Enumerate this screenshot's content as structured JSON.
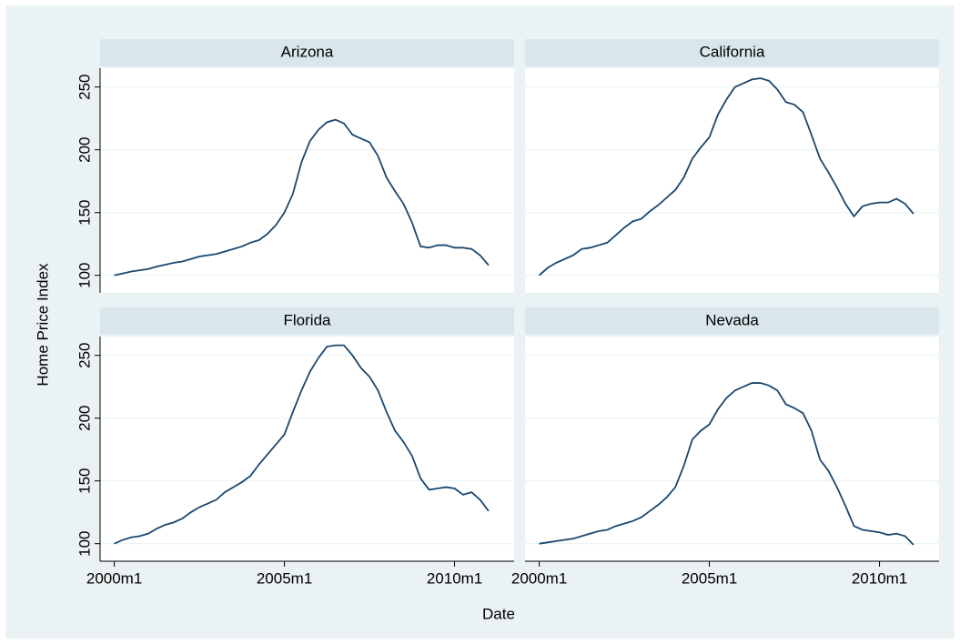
{
  "chart_data": {
    "type": "line",
    "xlabel": "Date",
    "ylabel": "Home Price Index",
    "x": [
      480,
      483,
      486,
      489,
      492,
      495,
      498,
      501,
      504,
      507,
      510,
      513,
      516,
      519,
      522,
      525,
      528,
      531,
      534,
      537,
      540,
      543,
      546,
      549,
      552,
      555,
      558,
      561,
      564,
      567,
      570,
      573,
      576,
      579,
      582,
      585,
      588,
      591,
      594,
      597,
      600,
      603,
      606,
      609,
      612
    ],
    "series": [
      {
        "name": "Arizona",
        "color": "#1a476f",
        "values": [
          100,
          101.5,
          103,
          104,
          105,
          107,
          108.5,
          110,
          111,
          113,
          115,
          116,
          117,
          119,
          121,
          123,
          126,
          128,
          133,
          140,
          150,
          165,
          190,
          207,
          216,
          222,
          224,
          221,
          212,
          209,
          206,
          195,
          178,
          167,
          157,
          142,
          123,
          122,
          124,
          124,
          122,
          122,
          121,
          116,
          108
        ]
      },
      {
        "name": "California",
        "color": "#1a476f",
        "values": [
          100,
          106,
          110,
          113,
          116,
          121,
          122,
          124,
          126,
          132,
          138,
          143,
          145,
          151,
          156,
          162,
          168,
          178,
          193,
          202,
          210,
          228,
          240,
          250,
          253,
          256,
          257,
          255,
          248,
          238,
          236,
          230,
          212,
          193,
          182,
          170,
          157,
          147,
          155,
          157,
          158,
          158,
          161,
          157,
          149
        ]
      },
      {
        "name": "Florida",
        "color": "#1a476f",
        "values": [
          100,
          103,
          105,
          106,
          108,
          112,
          115,
          117,
          120,
          125,
          129,
          132,
          135,
          141,
          145,
          149,
          154,
          163,
          171,
          179,
          187,
          205,
          222,
          237,
          248,
          257,
          258,
          258,
          250,
          240,
          233,
          222,
          205,
          190,
          181,
          170,
          152,
          143,
          144,
          145,
          144,
          139,
          141,
          135,
          126
        ]
      },
      {
        "name": "Nevada",
        "color": "#1a476f",
        "values": [
          100,
          101,
          102,
          103,
          104,
          106,
          108,
          110,
          111,
          114,
          116,
          118,
          121,
          126,
          131,
          137,
          145,
          162,
          183,
          190,
          195,
          207,
          216,
          222,
          225,
          228,
          228,
          226,
          222,
          211,
          208,
          204,
          190,
          167,
          158,
          145,
          130,
          114,
          111,
          110,
          109,
          107,
          108,
          106,
          99
        ]
      }
    ],
    "xlim": [
      475,
      621
    ],
    "xticks": [
      {
        "value": 480,
        "label": "2000m1"
      },
      {
        "value": 540,
        "label": "2005m1"
      },
      {
        "value": 600,
        "label": "2010m1"
      }
    ],
    "ylim": [
      86,
      265
    ],
    "yticks": [
      100,
      150,
      200,
      250
    ],
    "grid": true
  }
}
